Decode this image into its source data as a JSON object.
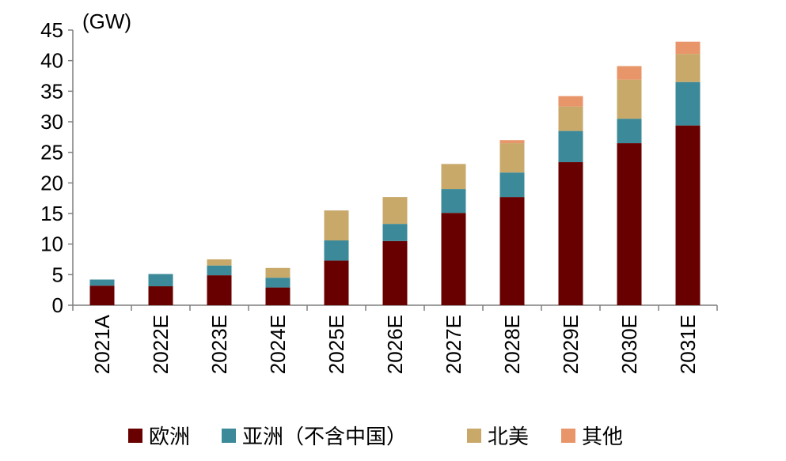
{
  "chart_data": {
    "type": "bar",
    "stacked": true,
    "unit_label": "(GW)",
    "categories": [
      "2021A",
      "2022E",
      "2023E",
      "2024E",
      "2025E",
      "2026E",
      "2027E",
      "2028E",
      "2029E",
      "2030E",
      "2031E"
    ],
    "series": [
      {
        "name": "欧洲",
        "color": "#680000",
        "values": [
          3.2,
          3.1,
          4.9,
          2.9,
          7.3,
          10.5,
          15.1,
          17.7,
          23.4,
          26.5,
          29.4
        ]
      },
      {
        "name": "亚洲（不含中国）",
        "color": "#3b8999",
        "values": [
          1.0,
          2.0,
          1.6,
          1.6,
          3.3,
          2.8,
          3.9,
          4.0,
          5.1,
          4.0,
          7.1
        ]
      },
      {
        "name": "北美",
        "color": "#c8a96a",
        "values": [
          0,
          0,
          1.0,
          1.6,
          4.9,
          4.4,
          4.1,
          4.8,
          4.0,
          6.4,
          4.6
        ]
      },
      {
        "name": "其他",
        "color": "#e8956a",
        "values": [
          0,
          0,
          0,
          0,
          0,
          0,
          0,
          0.5,
          1.7,
          2.2,
          2.0
        ]
      }
    ],
    "ylim": [
      0,
      45
    ],
    "yticks": [
      0,
      5,
      10,
      15,
      20,
      25,
      30,
      35,
      40,
      45
    ],
    "grid": false,
    "legend_position": "bottom"
  }
}
